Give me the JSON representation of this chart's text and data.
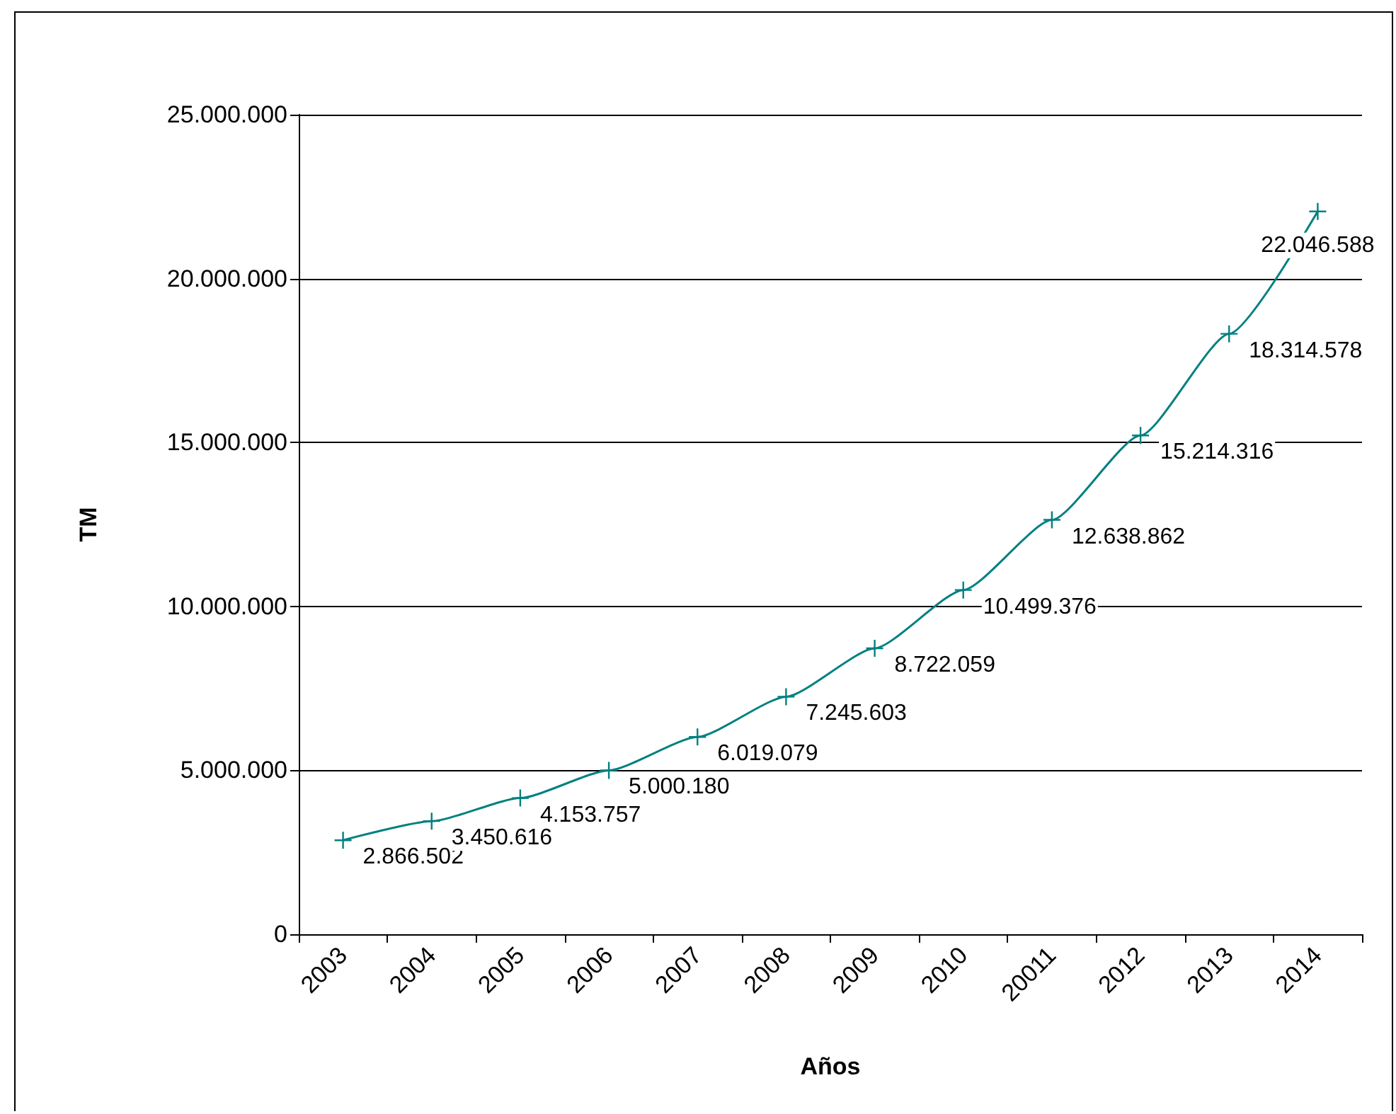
{
  "chart_data": {
    "type": "line",
    "xlabel": "Años",
    "ylabel": "TM",
    "categories": [
      "2003",
      "2004",
      "2005",
      "2006",
      "2007",
      "2008",
      "2009",
      "2010",
      "20011",
      "2012",
      "2013",
      "2014"
    ],
    "series": [
      {
        "color": "#008080",
        "values": [
          2866502,
          3450616,
          4153757,
          5000180,
          6019079,
          7245603,
          8722059,
          10499376,
          12638862,
          15214316,
          18314578,
          22046588
        ],
        "value_labels": [
          "2.866.502",
          "3.450.616",
          "4.153.757",
          "5.000.180",
          "6.019.079",
          "7.245.603",
          "8.722.059",
          "10.499.376",
          "12.638.862",
          "15.214.316",
          "18.314.578",
          "22.046.588"
        ]
      }
    ],
    "ylim": [
      0,
      25000000
    ],
    "yticks": [
      0,
      {
        "value": 5000000,
        "label": "5.000.000"
      },
      {
        "value": 10000000,
        "label": "10.000.000"
      },
      {
        "value": 15000000,
        "label": "15.000.000"
      },
      {
        "value": 20000000,
        "label": "20.000.000"
      },
      {
        "value": 25000000,
        "label": "25.000.000"
      }
    ],
    "grid": "y",
    "marker": "cross",
    "line_style": "solid"
  }
}
